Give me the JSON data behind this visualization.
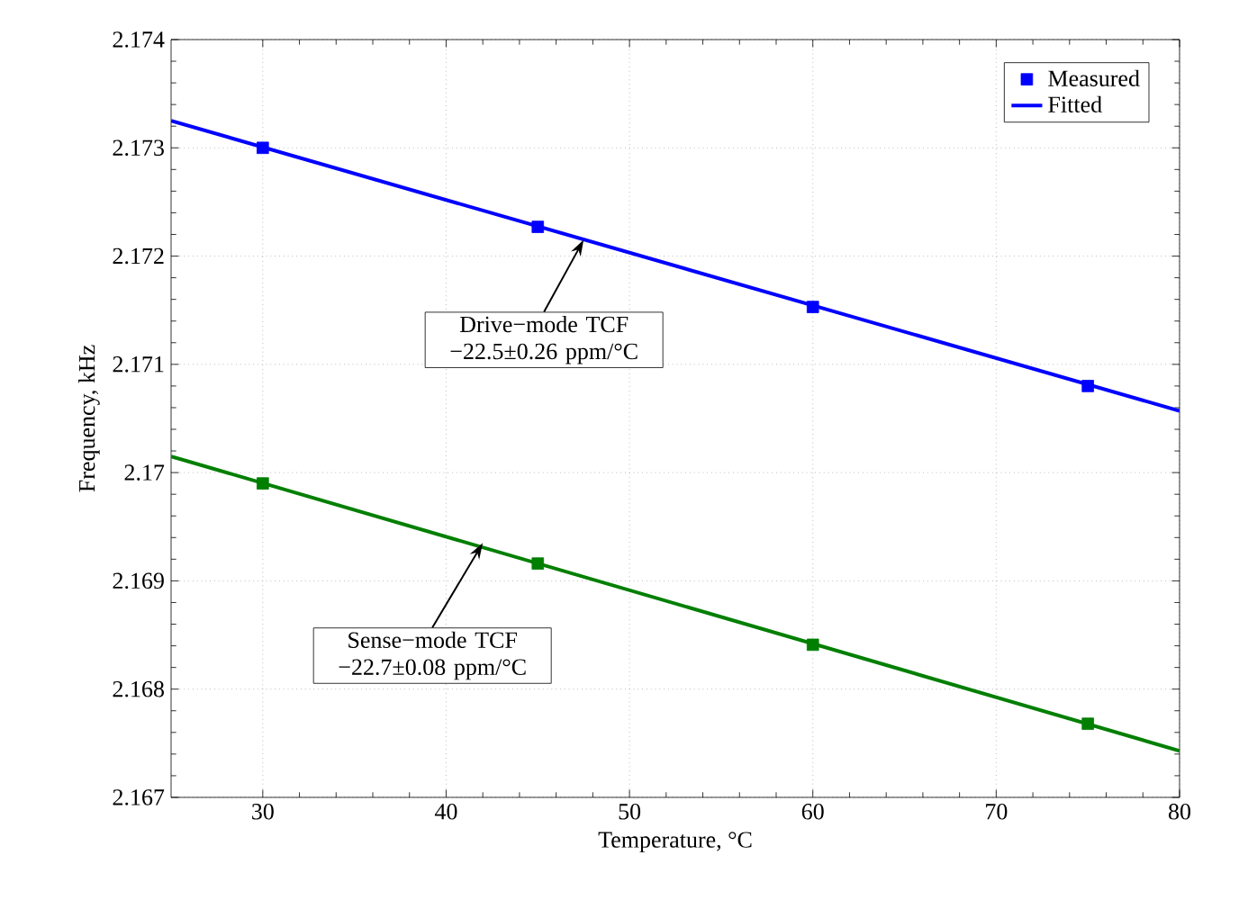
{
  "chart_data": {
    "type": "line",
    "xlabel": "Temperature, °C",
    "ylabel": "Frequency, kHz",
    "xlim": [
      25,
      80
    ],
    "xticks": [
      30,
      40,
      50,
      60,
      70,
      80
    ],
    "ylim": [
      2.167,
      2.174
    ],
    "yticks": [
      2.167,
      2.168,
      2.169,
      2.17,
      2.171,
      2.172,
      2.173,
      2.174
    ],
    "grid": true,
    "legend": "top right",
    "series": [
      {
        "name": "Measured",
        "type": "scatter",
        "marker": "square",
        "color": "#0000ff",
        "x": [
          30,
          45,
          60,
          75
        ],
        "values": [
          2.173,
          2.17227,
          2.17153,
          2.1708
        ]
      },
      {
        "name": "Fitted",
        "line_style": "solid",
        "color": "#0000ff",
        "x": [
          25,
          80
        ],
        "values": [
          2.17325,
          2.17057
        ]
      },
      {
        "type": "scatter",
        "marker": "square",
        "color": "#007f00",
        "x": [
          30,
          45,
          60,
          75
        ],
        "values": [
          2.1699,
          2.16916,
          2.16841,
          2.16768
        ]
      },
      {
        "line_style": "solid",
        "color": "#007f00",
        "x": [
          25,
          80
        ],
        "values": [
          2.17015,
          2.16743
        ]
      }
    ],
    "annotations": [
      {
        "text": "Drive−mode TCF −22.5±0.26 ppm/°C",
        "x": 47.5,
        "y": 2.17215
      },
      {
        "text": "Sense−mode TCF −22.7±0.08 ppm/°C",
        "x": 42,
        "y": 2.16935
      }
    ]
  }
}
